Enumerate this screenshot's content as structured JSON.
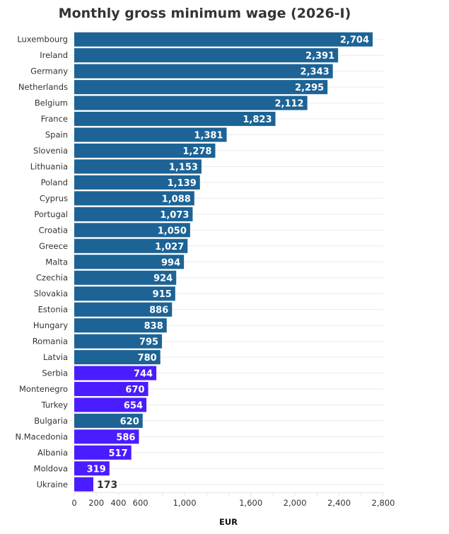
{
  "chart_data": {
    "type": "bar",
    "orientation": "horizontal",
    "title": "Monthly gross minimum wage (2026-I)",
    "xlabel": "EUR",
    "ylabel": "",
    "xlim": [
      0,
      2800
    ],
    "x_tick_labels": [
      "0",
      "200",
      "400",
      "600",
      "1,000",
      "1,600",
      "2,000",
      "2,400",
      "2,800"
    ],
    "x_tick_values": [
      0,
      200,
      400,
      600,
      1000,
      1600,
      2000,
      2400,
      2800
    ],
    "x_minor_ticks": [
      0,
      200,
      400,
      600,
      800,
      1000,
      1200,
      1400,
      1600,
      1800,
      2000,
      2200,
      2400,
      2600,
      2800
    ],
    "grid": true,
    "colors": {
      "eu": "#1d6395",
      "non_eu": "#4a1cff"
    },
    "categories": [
      "Luxembourg",
      "Ireland",
      "Germany",
      "Netherlands",
      "Belgium",
      "France",
      "Spain",
      "Slovenia",
      "Lithuania",
      "Poland",
      "Cyprus",
      "Portugal",
      "Croatia",
      "Greece",
      "Malta",
      "Czechia",
      "Slovakia",
      "Estonia",
      "Hungary",
      "Romania",
      "Latvia",
      "Serbia",
      "Montenegro",
      "Turkey",
      "Bulgaria",
      "N.Macedonia",
      "Albania",
      "Moldova",
      "Ukraine"
    ],
    "values": [
      2704,
      2391,
      2343,
      2295,
      2112,
      1823,
      1381,
      1278,
      1153,
      1139,
      1088,
      1073,
      1050,
      1027,
      994,
      924,
      915,
      886,
      838,
      795,
      780,
      744,
      670,
      654,
      620,
      586,
      517,
      319,
      173
    ],
    "value_labels": [
      "2,704",
      "2,391",
      "2,343",
      "2,295",
      "2,112",
      "1,823",
      "1,381",
      "1,278",
      "1,153",
      "1,139",
      "1,088",
      "1,073",
      "1,050",
      "1,027",
      "994",
      "924",
      "915",
      "886",
      "838",
      "795",
      "780",
      "744",
      "670",
      "654",
      "620",
      "586",
      "517",
      "319",
      "173"
    ],
    "groups": [
      "eu",
      "eu",
      "eu",
      "eu",
      "eu",
      "eu",
      "eu",
      "eu",
      "eu",
      "eu",
      "eu",
      "eu",
      "eu",
      "eu",
      "eu",
      "eu",
      "eu",
      "eu",
      "eu",
      "eu",
      "eu",
      "non_eu",
      "non_eu",
      "non_eu",
      "eu",
      "non_eu",
      "non_eu",
      "non_eu",
      "non_eu"
    ]
  }
}
